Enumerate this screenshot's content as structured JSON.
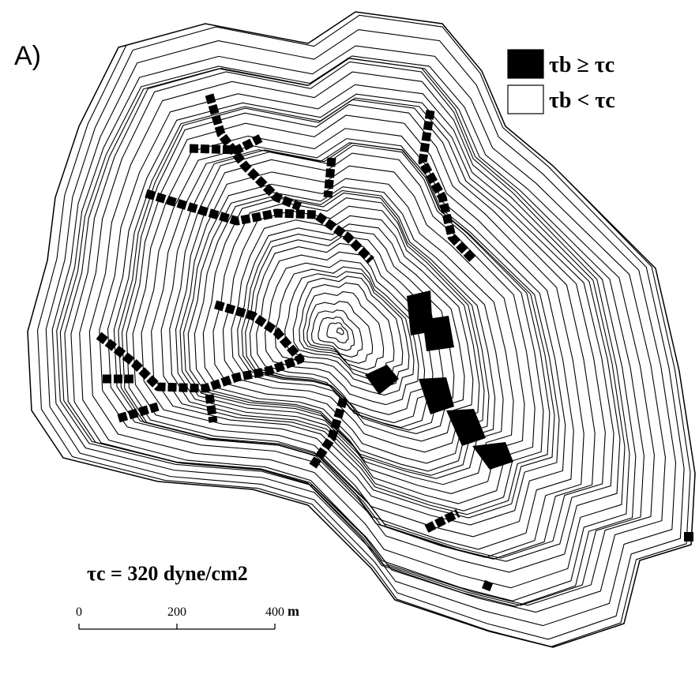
{
  "panel_label": "A)",
  "legend": [
    {
      "label": "τb ≥ τc",
      "color": "#000000"
    },
    {
      "label": "τb < τc",
      "color": "#ffffff"
    }
  ],
  "threshold_label": "τc = 320 dyne/cm2",
  "scale_bar": {
    "ticks": [
      0,
      200,
      400
    ],
    "unit": "m"
  }
}
